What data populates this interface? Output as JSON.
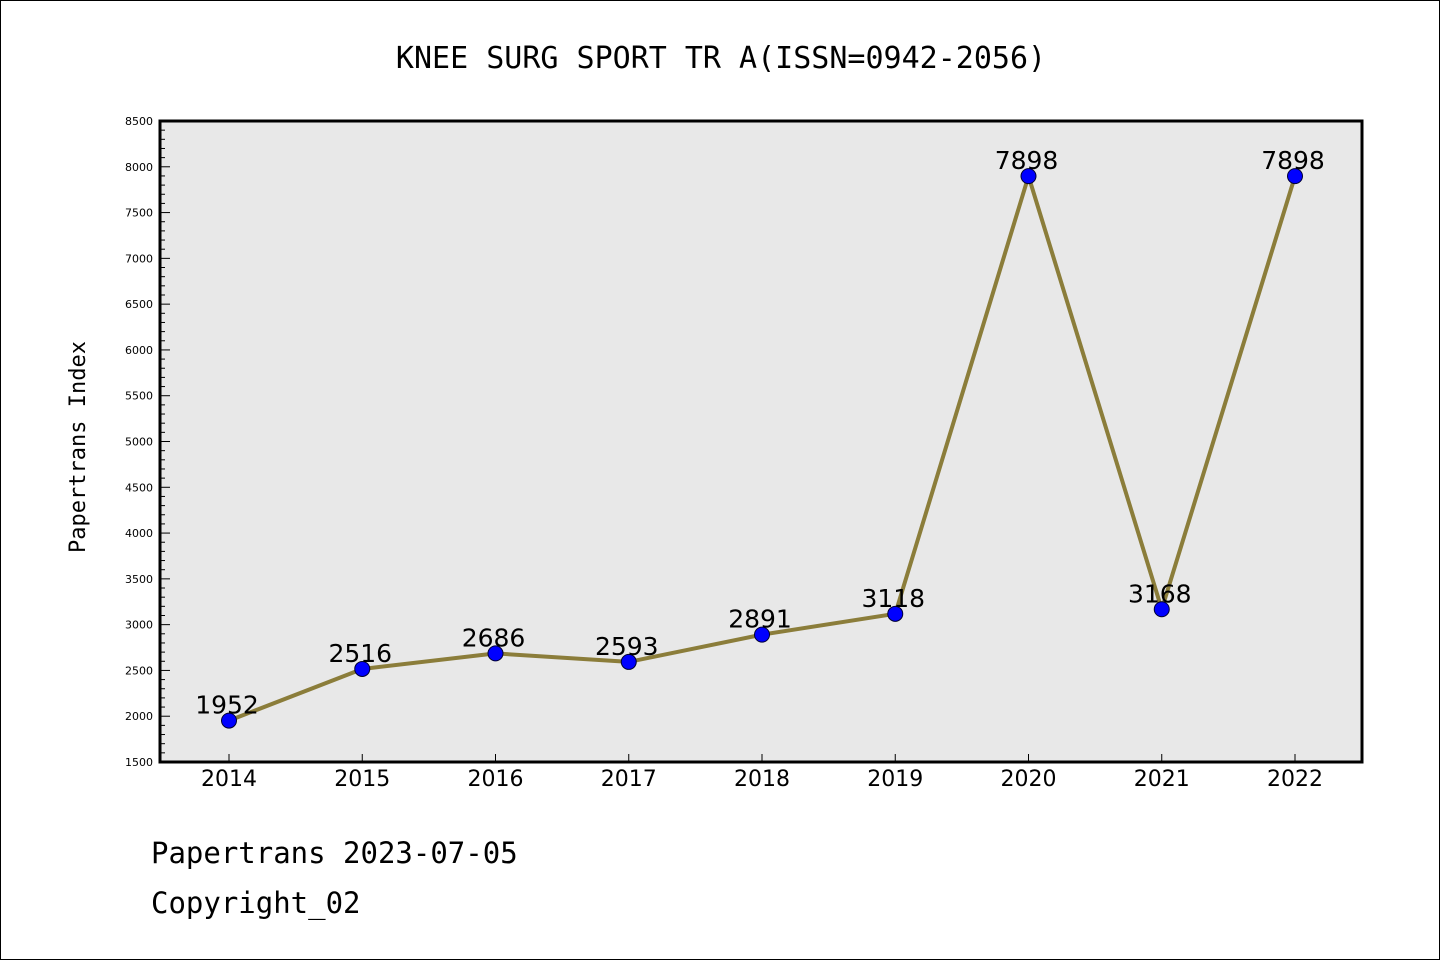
{
  "chart_data": {
    "type": "line",
    "title": "KNEE SURG SPORT TR A(ISSN=0942-2056)",
    "xlabel": "",
    "ylabel": "Papertrans Index",
    "categories": [
      "2014",
      "2015",
      "2016",
      "2017",
      "2018",
      "2019",
      "2020",
      "2021",
      "2022"
    ],
    "values": [
      1952,
      2516,
      2686,
      2593,
      2891,
      3118,
      7898,
      3168,
      7898
    ],
    "data_labels": [
      "1952",
      "2516",
      "2686",
      "2593",
      "2891",
      "3118",
      "7898",
      "3168",
      "7898"
    ],
    "ylim": [
      1500,
      8500
    ],
    "yticks": [
      1500,
      2000,
      2500,
      3000,
      3500,
      4000,
      4500,
      5000,
      5500,
      6000,
      6500,
      7000,
      7500,
      8000,
      8500
    ],
    "grid": false,
    "legend": "none",
    "colors": {
      "line": "#8b7d3a",
      "marker": "#0000ff",
      "plot_background": "#e8e8e8"
    }
  },
  "footer": {
    "line1": "Papertrans 2023-07-05",
    "line2": "Copyright_02"
  }
}
